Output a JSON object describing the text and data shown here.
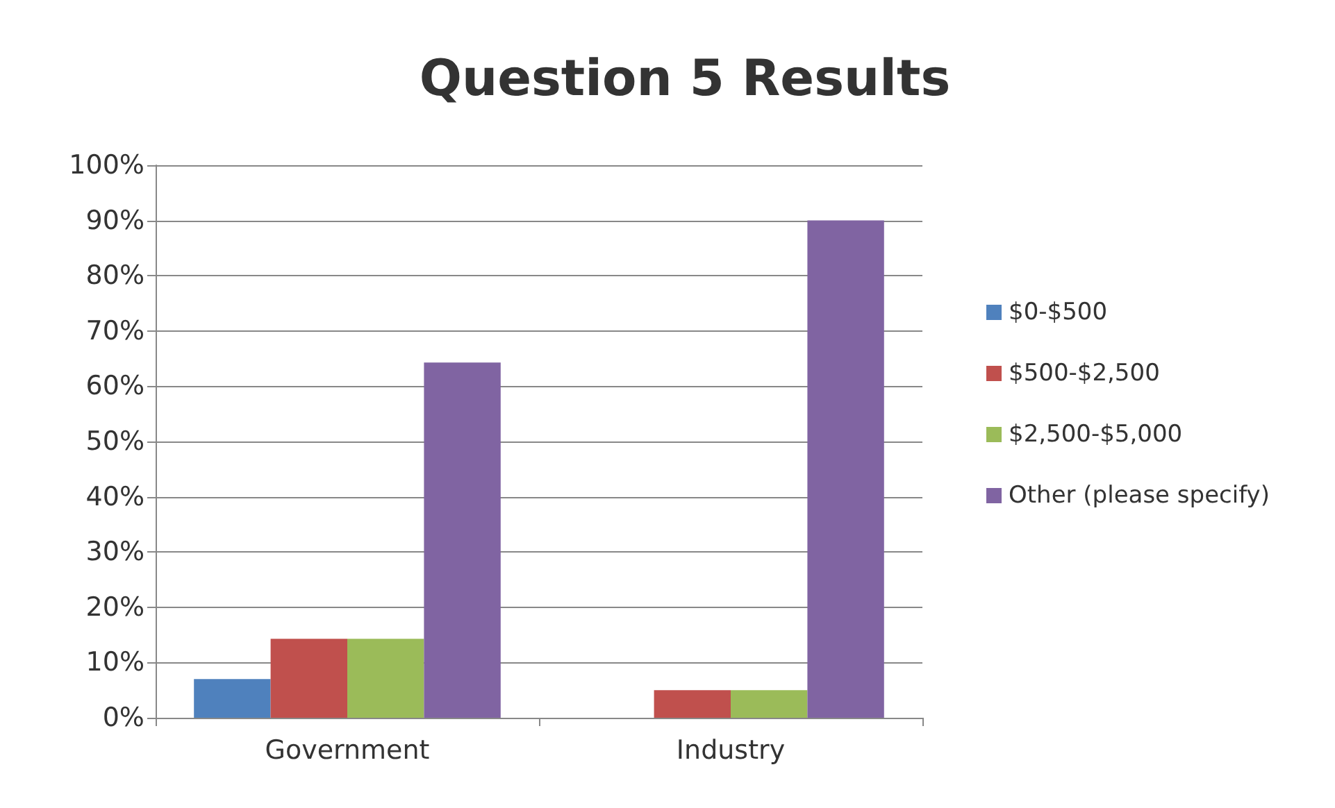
{
  "chart_data": {
    "type": "bar",
    "title": "Question 5 Results",
    "categories": [
      "Government",
      "Industry"
    ],
    "series": [
      {
        "name": "$0-$500",
        "color": "#4f81bd",
        "values": [
          7,
          0
        ]
      },
      {
        "name": "$500-$2,500",
        "color": "#c0504d",
        "values": [
          14.3,
          5
        ]
      },
      {
        "name": "$2,500-$5,000",
        "color": "#9bbb59",
        "values": [
          14.3,
          5
        ]
      },
      {
        "name": "Other (please specify)",
        "color": "#8064a2",
        "values": [
          64.3,
          90
        ]
      }
    ],
    "ylim": [
      0,
      100
    ],
    "yticks": [
      {
        "value": 0,
        "label": "0%"
      },
      {
        "value": 10,
        "label": "10%"
      },
      {
        "value": 20,
        "label": "20%"
      },
      {
        "value": 30,
        "label": "30%"
      },
      {
        "value": 40,
        "label": "40%"
      },
      {
        "value": 50,
        "label": "50%"
      },
      {
        "value": 60,
        "label": "60%"
      },
      {
        "value": 70,
        "label": "70%"
      },
      {
        "value": 80,
        "label": "80%"
      },
      {
        "value": 90,
        "label": "90%"
      },
      {
        "value": 100,
        "label": "100%"
      }
    ],
    "grid": "y",
    "legend": "right"
  }
}
